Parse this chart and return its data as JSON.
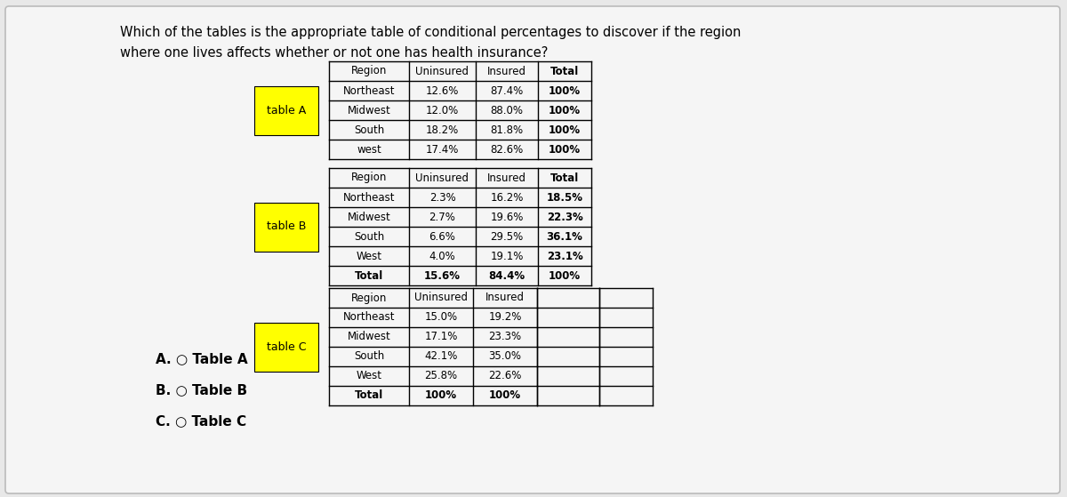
{
  "question_line1": "Which of the tables is the appropriate table of conditional percentages to discover if the region",
  "question_line2": "where one lives affects whether or not one has health insurance?",
  "bg_color": "#e8e8e8",
  "card_color": "#f5f5f5",
  "table_a": {
    "label": "table A",
    "label_bg": "#ffff00",
    "headers": [
      "Region",
      "Uninsured",
      "Insured",
      "Total"
    ],
    "rows": [
      [
        "Northeast",
        "12.6%",
        "87.4%",
        "100%"
      ],
      [
        "Midwest",
        "12.0%",
        "88.0%",
        "100%"
      ],
      [
        "South",
        "18.2%",
        "81.8%",
        "100%"
      ],
      [
        "west",
        "17.4%",
        "82.6%",
        "100%"
      ]
    ],
    "bold_col": 3,
    "has_total_row": false
  },
  "table_b": {
    "label": "table B",
    "label_bg": "#ffff00",
    "headers": [
      "Region",
      "Uninsured",
      "Insured",
      "Total"
    ],
    "rows": [
      [
        "Northeast",
        "2.3%",
        "16.2%",
        "18.5%"
      ],
      [
        "Midwest",
        "2.7%",
        "19.6%",
        "22.3%"
      ],
      [
        "South",
        "6.6%",
        "29.5%",
        "36.1%"
      ],
      [
        "West",
        "4.0%",
        "19.1%",
        "23.1%"
      ],
      [
        "Total",
        "15.6%",
        "84.4%",
        "100%"
      ]
    ],
    "bold_col": 3,
    "has_total_row": true
  },
  "table_c": {
    "label": "table C",
    "label_bg": "#ffff00",
    "headers": [
      "Region",
      "Uninsured",
      "Insured"
    ],
    "rows": [
      [
        "Northeast",
        "15.0%",
        "19.2%"
      ],
      [
        "Midwest",
        "17.1%",
        "23.3%"
      ],
      [
        "South",
        "42.1%",
        "35.0%"
      ],
      [
        "West",
        "25.8%",
        "22.6%"
      ],
      [
        "Total",
        "100%",
        "100%"
      ]
    ],
    "bold_col": -1,
    "has_total_row": true
  },
  "answers": [
    {
      "letter": "A.",
      "text": "Table A"
    },
    {
      "letter": "B.",
      "text": "Table B"
    },
    {
      "letter": "C.",
      "text": "Table C"
    }
  ],
  "question_fontsize": 10.5,
  "table_fontsize": 8.5,
  "answer_fontsize": 11
}
